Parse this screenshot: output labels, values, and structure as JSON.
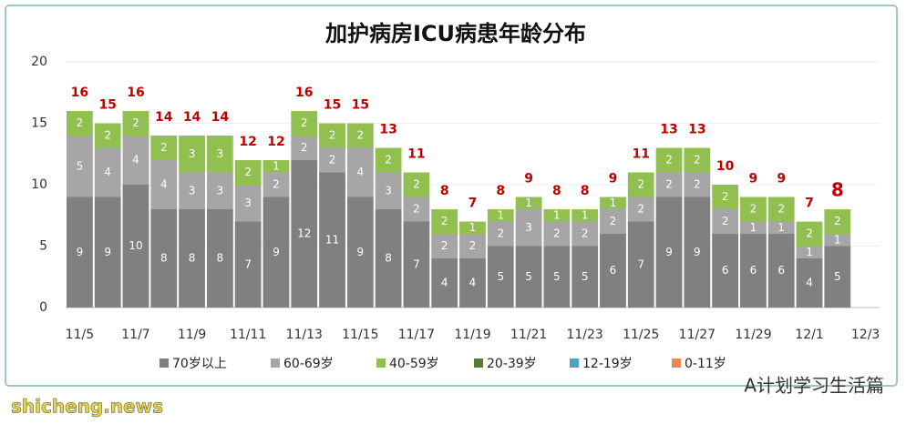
{
  "chart_data": {
    "type": "stacked_bar",
    "title": "加护病房ICU病患年龄分布",
    "categories": [
      "11/5",
      null,
      "11/7",
      null,
      "11/9",
      null,
      "11/11",
      null,
      "11/13",
      null,
      "11/15",
      null,
      "11/17",
      null,
      "11/19",
      null,
      "11/21",
      null,
      "11/23",
      null,
      "11/25",
      null,
      "11/27",
      null,
      "11/29",
      null,
      "12/1",
      null,
      "12/3"
    ],
    "series": [
      {
        "name": "70岁以上",
        "color": "#808080",
        "values": [
          9,
          9,
          10,
          8,
          8,
          8,
          7,
          9,
          12,
          11,
          9,
          8,
          7,
          4,
          4,
          5,
          5,
          5,
          5,
          6,
          7,
          9,
          9,
          6,
          6,
          6,
          4,
          5,
          null
        ]
      },
      {
        "name": "60-69岁",
        "color": "#a6a6a6",
        "values": [
          5,
          4,
          4,
          4,
          3,
          3,
          3,
          2,
          2,
          2,
          4,
          3,
          2,
          2,
          2,
          2,
          3,
          2,
          2,
          2,
          2,
          2,
          2,
          2,
          1,
          1,
          1,
          1,
          null
        ]
      },
      {
        "name": "40-59岁",
        "color": "#92c050",
        "values": [
          2,
          2,
          2,
          2,
          3,
          3,
          2,
          1,
          2,
          2,
          2,
          2,
          2,
          2,
          1,
          1,
          1,
          1,
          1,
          1,
          2,
          2,
          2,
          2,
          2,
          2,
          2,
          2,
          null
        ]
      },
      {
        "name": "20-39岁",
        "color": "#5a7a35",
        "values": [
          0,
          0,
          0,
          0,
          0,
          0,
          0,
          0,
          0,
          0,
          0,
          0,
          0,
          0,
          0,
          0,
          0,
          0,
          0,
          0,
          0,
          0,
          0,
          0,
          0,
          0,
          0,
          0,
          null
        ]
      },
      {
        "name": "12-19岁",
        "color": "#4ba3c3",
        "values": [
          0,
          0,
          0,
          0,
          0,
          0,
          0,
          0,
          0,
          0,
          0,
          0,
          0,
          0,
          0,
          0,
          0,
          0,
          0,
          0,
          0,
          0,
          0,
          0,
          0,
          0,
          0,
          0,
          null
        ]
      },
      {
        "name": "0-11岁",
        "color": "#e8894a",
        "values": [
          0,
          0,
          0,
          0,
          0,
          0,
          0,
          0,
          0,
          0,
          0,
          0,
          0,
          0,
          0,
          0,
          0,
          0,
          0,
          0,
          0,
          0,
          0,
          0,
          0,
          0,
          0,
          0,
          null
        ]
      }
    ],
    "totals": [
      16,
      15,
      16,
      14,
      14,
      14,
      12,
      12,
      16,
      15,
      15,
      13,
      11,
      8,
      7,
      8,
      9,
      8,
      8,
      9,
      11,
      13,
      13,
      10,
      9,
      9,
      7,
      8,
      null
    ],
    "ylim": [
      0,
      20
    ],
    "yticks": [
      0,
      5,
      10,
      15,
      20
    ],
    "grid": true,
    "legend": "bottom"
  },
  "watermark": {
    "account": "A计划学习生活篇",
    "site": "shicheng.news"
  }
}
